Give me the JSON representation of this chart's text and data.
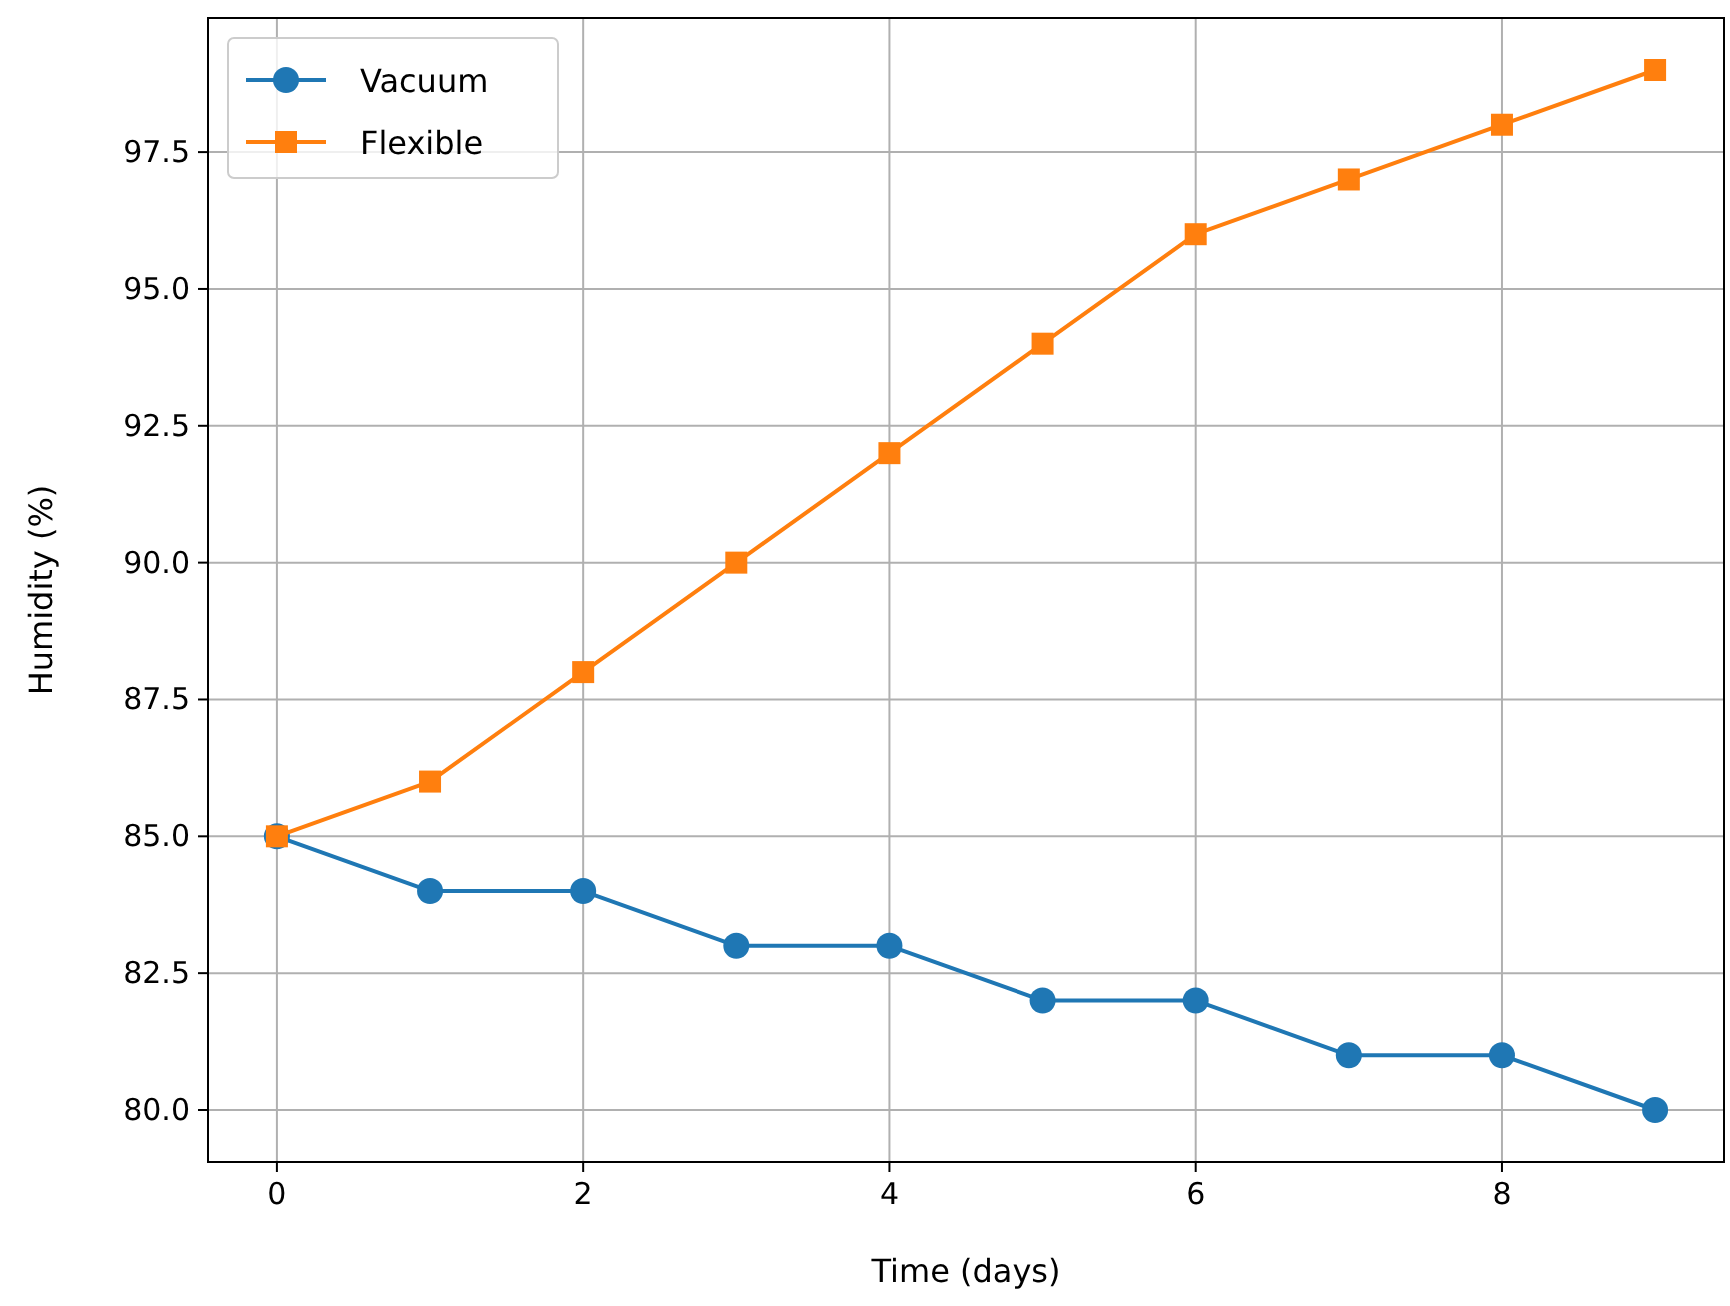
{
  "chart_data": {
    "type": "line",
    "xlabel": "Time (days)",
    "ylabel": "Humidity (%)",
    "x": [
      0,
      1,
      2,
      3,
      4,
      5,
      6,
      7,
      8,
      9
    ],
    "xlim": [
      -0.45,
      9.45
    ],
    "xticks": [
      0,
      2,
      4,
      6,
      8
    ],
    "ylim": [
      79.05,
      99.95
    ],
    "yticks": [
      {
        "value": 80,
        "label": "80.0"
      },
      {
        "value": 82.5,
        "label": "82.5"
      },
      {
        "value": 85,
        "label": "85.0"
      },
      {
        "value": 87.5,
        "label": "87.5"
      },
      {
        "value": 90,
        "label": "90.0"
      },
      {
        "value": 92.5,
        "label": "92.5"
      },
      {
        "value": 95,
        "label": "95.0"
      },
      {
        "value": 97.5,
        "label": "97.5"
      }
    ],
    "grid": true,
    "legend": "top left",
    "line_style": "solid",
    "series": [
      {
        "name": "Vacuum",
        "color": "#1f77b4",
        "marker": "circle",
        "values": [
          85,
          84,
          84,
          83,
          83,
          82,
          82,
          81,
          81,
          80
        ]
      },
      {
        "name": "Flexible",
        "color": "#ff7f0e",
        "marker": "square",
        "values": [
          85,
          86,
          88,
          90,
          92,
          94,
          96,
          97,
          98,
          99
        ]
      }
    ]
  }
}
